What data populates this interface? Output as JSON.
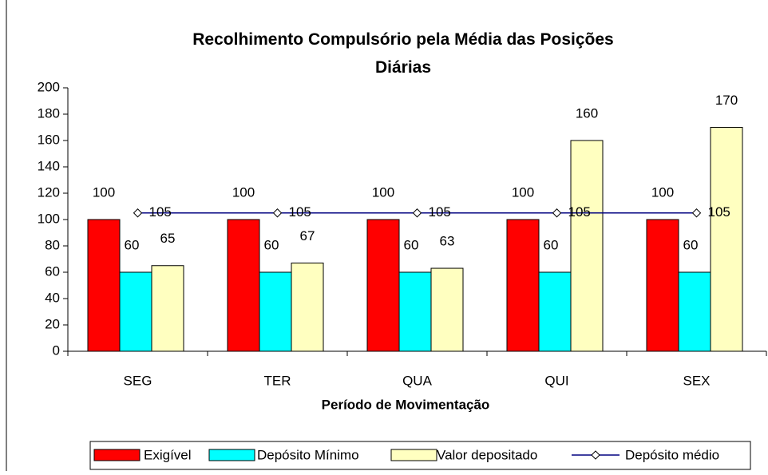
{
  "chart_data": {
    "type": "bar",
    "title": "Recolhimento Compulsório pela Média das Posições Diárias",
    "x_label": "Período de Movimentação",
    "categories": [
      "SEG",
      "TER",
      "QUA",
      "QUI",
      "SEX"
    ],
    "series": [
      {
        "name": "Exigível",
        "color": "#ff0000",
        "values": [
          100,
          100,
          100,
          100,
          100
        ]
      },
      {
        "name": "Depósito Mínimo",
        "color": "#00ffff",
        "values": [
          60,
          60,
          60,
          60,
          60
        ]
      },
      {
        "name": "Valor depositado",
        "color": "#ffffc0",
        "values": [
          65,
          67,
          63,
          160,
          170
        ]
      },
      {
        "name": "Depósito médio",
        "color": "#000080",
        "type": "line",
        "values": [
          105,
          105,
          105,
          105,
          105
        ]
      }
    ],
    "ylim": [
      0,
      200
    ],
    "yticks": [
      0,
      20,
      40,
      60,
      80,
      100,
      120,
      140,
      160,
      180,
      200
    ],
    "legend": "bottom"
  }
}
